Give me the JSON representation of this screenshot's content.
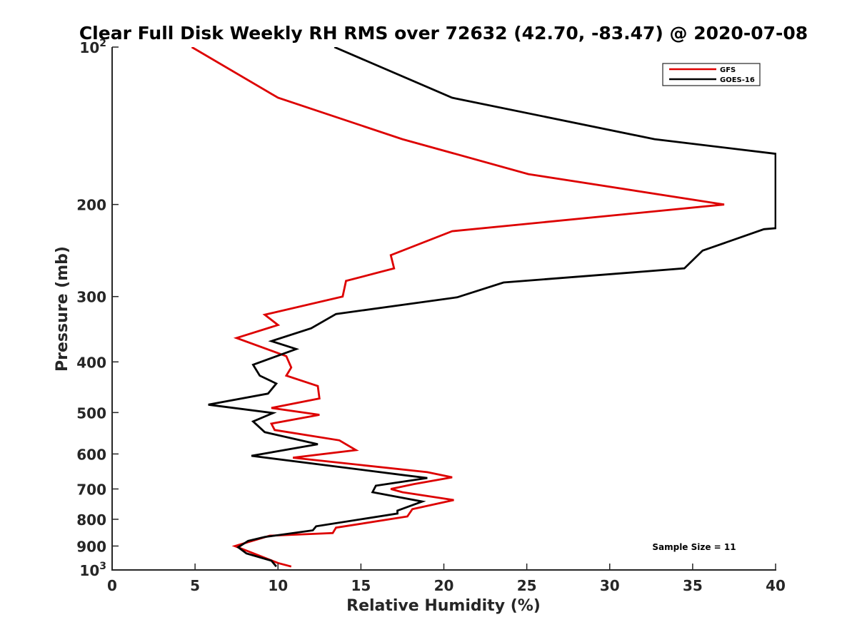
{
  "chart_data": {
    "type": "line",
    "title": "Clear Full Disk Weekly RH RMS over 72632 (42.70, -83.47) @ 2020-07-08",
    "xlabel": "Relative Humidity (%)",
    "ylabel": "Pressure (mb)",
    "xlim": [
      0,
      40
    ],
    "ylim": [
      100,
      1000
    ],
    "y_scale": "log",
    "y_reversed": true,
    "x_ticks": [
      "0",
      "5",
      "10",
      "15",
      "20",
      "25",
      "30",
      "35",
      "40"
    ],
    "y_ticks": [
      {
        "value": 100,
        "label": "10",
        "exp": "2"
      },
      {
        "value": 200,
        "label": "200"
      },
      {
        "value": 300,
        "label": "300"
      },
      {
        "value": 400,
        "label": "400"
      },
      {
        "value": 500,
        "label": "500"
      },
      {
        "value": 600,
        "label": "600"
      },
      {
        "value": 700,
        "label": "700"
      },
      {
        "value": 800,
        "label": "800"
      },
      {
        "value": 900,
        "label": "900"
      },
      {
        "value": 1000,
        "label": "10",
        "exp": "3"
      }
    ],
    "legend_position": "top-right",
    "grid": false,
    "annotation": "Sample Size = 11",
    "series": [
      {
        "name": "GFS",
        "color": "#dd0000",
        "points": [
          [
            4.8,
            100
          ],
          [
            10.0,
            125
          ],
          [
            17.5,
            150
          ],
          [
            25.1,
            175
          ],
          [
            36.9,
            200
          ],
          [
            20.5,
            225
          ],
          [
            16.8,
            250
          ],
          [
            17.0,
            265
          ],
          [
            14.1,
            280
          ],
          [
            13.9,
            300
          ],
          [
            9.2,
            325
          ],
          [
            10.0,
            340
          ],
          [
            7.5,
            360
          ],
          [
            10.5,
            390
          ],
          [
            10.8,
            410
          ],
          [
            10.5,
            425
          ],
          [
            12.4,
            445
          ],
          [
            12.5,
            470
          ],
          [
            9.6,
            490
          ],
          [
            12.5,
            505
          ],
          [
            9.6,
            525
          ],
          [
            9.8,
            540
          ],
          [
            13.7,
            565
          ],
          [
            14.7,
            590
          ],
          [
            10.9,
            610
          ],
          [
            19.0,
            650
          ],
          [
            20.5,
            665
          ],
          [
            18.2,
            685
          ],
          [
            16.8,
            700
          ],
          [
            17.5,
            710
          ],
          [
            20.6,
            735
          ],
          [
            18.1,
            765
          ],
          [
            17.8,
            790
          ],
          [
            13.5,
            830
          ],
          [
            13.3,
            850
          ],
          [
            9.5,
            860
          ],
          [
            7.4,
            900
          ],
          [
            10.0,
            970
          ],
          [
            10.8,
            985
          ]
        ]
      },
      {
        "name": "GOES-16",
        "color": "#000000",
        "points": [
          [
            13.4,
            100
          ],
          [
            20.5,
            125
          ],
          [
            32.7,
            150
          ],
          [
            40.0,
            160
          ],
          [
            40.0,
            222
          ],
          [
            39.3,
            223
          ],
          [
            35.6,
            245
          ],
          [
            34.5,
            265
          ],
          [
            23.6,
            282
          ],
          [
            20.8,
            301
          ],
          [
            13.5,
            324
          ],
          [
            12.0,
            345
          ],
          [
            9.6,
            365
          ],
          [
            11.1,
            378
          ],
          [
            8.5,
            405
          ],
          [
            8.9,
            425
          ],
          [
            9.9,
            440
          ],
          [
            9.4,
            460
          ],
          [
            5.8,
            483
          ],
          [
            9.7,
            501
          ],
          [
            8.5,
            520
          ],
          [
            9.2,
            545
          ],
          [
            12.4,
            575
          ],
          [
            8.4,
            605
          ],
          [
            17.5,
            658
          ],
          [
            19.0,
            667
          ],
          [
            15.9,
            690
          ],
          [
            15.7,
            710
          ],
          [
            18.7,
            740
          ],
          [
            17.2,
            770
          ],
          [
            17.2,
            780
          ],
          [
            12.3,
            825
          ],
          [
            12.1,
            840
          ],
          [
            9.2,
            865
          ],
          [
            8.2,
            880
          ],
          [
            7.6,
            905
          ],
          [
            8.1,
            930
          ],
          [
            9.6,
            960
          ],
          [
            9.9,
            985
          ]
        ]
      }
    ]
  }
}
